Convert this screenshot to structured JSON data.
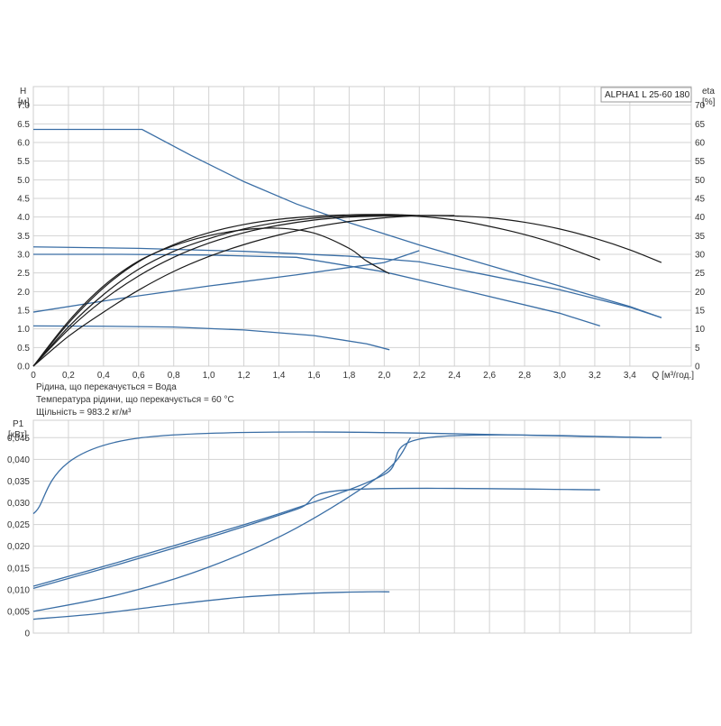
{
  "chart_data": [
    {
      "type": "line",
      "panel": "head-and-efficiency",
      "product_label": "ALPHA1 L 25-60   180",
      "x_axis": {
        "label": "Q [м³/год.]",
        "range": [
          0,
          3.75
        ],
        "ticks": [
          "0",
          "0,2",
          "0,4",
          "0,6",
          "0,8",
          "1,0",
          "1,2",
          "1,4",
          "1,6",
          "1,8",
          "2,0",
          "2,2",
          "2,4",
          "2,6",
          "2,8",
          "3,0",
          "3,2",
          "3,4"
        ]
      },
      "y_axis_left": {
        "label_line1": "H",
        "label_line2": "[м]",
        "range": [
          0,
          7.5
        ],
        "ticks": [
          "0.0",
          "0.5",
          "1.0",
          "1.5",
          "2.0",
          "2.5",
          "3.0",
          "3.5",
          "4.0",
          "4.5",
          "5.0",
          "5.5",
          "6.0",
          "6.5",
          "7.0"
        ]
      },
      "y_axis_right": {
        "label_line1": "eta",
        "label_line2": "[%]",
        "range": [
          0,
          75
        ],
        "ticks": [
          "0",
          "5",
          "10",
          "15",
          "20",
          "25",
          "30",
          "35",
          "40",
          "45",
          "50",
          "55",
          "60",
          "65",
          "70"
        ]
      },
      "grid": true,
      "colors": {
        "head_curves": "#3a6ea5",
        "efficiency_curves": "#1a1a1a",
        "grid": "#d3d3d3"
      },
      "head_series": [
        {
          "x": [
            0,
            0.62,
            0.9,
            1.2,
            1.5,
            1.8,
            2.2,
            2.6,
            3.0,
            3.4,
            3.58
          ],
          "y": [
            6.35,
            6.35,
            5.65,
            4.95,
            4.35,
            3.85,
            3.25,
            2.7,
            2.15,
            1.6,
            1.3
          ]
        },
        {
          "x": [
            0,
            0.6,
            1.2,
            1.8,
            2.2,
            2.6,
            3.0,
            3.4,
            3.58
          ],
          "y": [
            3.2,
            3.16,
            3.08,
            2.95,
            2.8,
            2.43,
            2.05,
            1.58,
            1.3
          ]
        },
        {
          "x": [
            0,
            0.5,
            1.0,
            1.5,
            2.0,
            2.5,
            3.0,
            3.23
          ],
          "y": [
            3.0,
            3.0,
            2.98,
            2.92,
            2.53,
            1.98,
            1.42,
            1.08
          ]
        },
        {
          "x": [
            0,
            0.4,
            0.8,
            1.2,
            1.6,
            1.9,
            2.03
          ],
          "y": [
            1.08,
            1.07,
            1.05,
            0.97,
            0.82,
            0.6,
            0.44
          ]
        },
        {
          "x": [
            0,
            0.5,
            1.0,
            1.5,
            2.0,
            2.2
          ],
          "y": [
            1.45,
            1.82,
            2.15,
            2.45,
            2.78,
            3.1
          ]
        }
      ],
      "efficiency_series": [
        {
          "x": [
            0,
            0.2,
            0.4,
            0.6,
            0.8,
            1.0,
            1.2,
            1.4,
            1.6,
            1.8,
            2.0,
            2.2,
            2.4,
            2.6,
            2.8,
            3.0,
            3.2,
            3.4,
            3.58
          ],
          "y": [
            0,
            9.8,
            17.8,
            24.2,
            29.2,
            33.0,
            35.8,
            37.8,
            39.2,
            40.0,
            40.3,
            40.4,
            40.3,
            39.8,
            38.6,
            36.8,
            34.3,
            31.2,
            27.8
          ]
        },
        {
          "x": [
            0,
            0.2,
            0.4,
            0.6,
            0.8,
            1.0,
            1.2,
            1.4,
            1.6,
            1.8,
            2.0,
            2.2,
            2.4,
            2.6,
            2.8,
            3.0,
            3.23
          ],
          "y": [
            0,
            10.5,
            19.2,
            26.0,
            30.8,
            34.2,
            36.8,
            38.6,
            39.7,
            40.3,
            40.4,
            40.2,
            39.2,
            37.5,
            35.3,
            32.5,
            28.5
          ]
        },
        {
          "x": [
            0,
            0.2,
            0.4,
            0.6,
            0.8,
            1.0,
            1.2,
            1.4,
            1.6,
            1.8,
            2.0,
            2.1,
            2.2
          ],
          "y": [
            0,
            11.5,
            21.0,
            28.0,
            32.6,
            35.8,
            38.0,
            39.4,
            40.2,
            40.6,
            40.7,
            40.6,
            40.4
          ]
        },
        {
          "x": [
            0,
            0.2,
            0.4,
            0.6,
            0.8,
            1.0,
            1.2,
            1.4,
            1.6,
            1.8,
            1.9,
            2.03
          ],
          "y": [
            0,
            12.0,
            21.5,
            28.2,
            32.3,
            35.0,
            36.6,
            37.0,
            35.7,
            31.6,
            28.2,
            24.8
          ]
        },
        {
          "x": [
            0,
            0.2,
            0.4,
            0.6,
            0.8,
            1.0,
            1.2,
            1.4,
            1.6,
            1.8,
            2.0,
            2.2,
            2.4
          ],
          "y": [
            0,
            8.0,
            14.5,
            20.4,
            25.4,
            29.4,
            32.6,
            35.2,
            37.3,
            38.8,
            39.8,
            40.4,
            40.4
          ]
        }
      ]
    },
    {
      "type": "line",
      "panel": "power-input",
      "x_axis": {
        "range": [
          0,
          3.75
        ]
      },
      "y_axis_left": {
        "label_line1": "P1",
        "label_line2": "[кВт]",
        "range": [
          0,
          0.049
        ],
        "ticks": [
          "0",
          "0,005",
          "0,010",
          "0,015",
          "0,020",
          "0,025",
          "0,030",
          "0,035",
          "0,040",
          "0,045"
        ]
      },
      "grid": true,
      "colors": {
        "power_curves": "#3a6ea5"
      },
      "power_series": [
        {
          "x": [
            0,
            0.62,
            3.58
          ],
          "y": [
            0.0275,
            0.045,
            0.045
          ]
        },
        {
          "x": [
            0,
            0.5,
            1.0,
            1.5,
            2.0,
            2.25,
            3.58
          ],
          "y": [
            0.0108,
            0.0165,
            0.0225,
            0.0288,
            0.0365,
            0.045,
            0.045
          ]
        },
        {
          "x": [
            0,
            0.5,
            1.0,
            1.5,
            1.8,
            3.23
          ],
          "y": [
            0.0103,
            0.016,
            0.022,
            0.0285,
            0.033,
            0.033
          ]
        },
        {
          "x": [
            0,
            0.4,
            0.8,
            1.2,
            1.6,
            1.9,
            2.03
          ],
          "y": [
            0.0032,
            0.0046,
            0.0066,
            0.0083,
            0.0092,
            0.0095,
            0.0095
          ]
        },
        {
          "x": [
            0,
            0.5,
            1.0,
            1.5,
            2.0,
            2.15
          ],
          "y": [
            0.005,
            0.009,
            0.0152,
            0.0242,
            0.037,
            0.045
          ]
        }
      ]
    }
  ],
  "conditions": {
    "line1": "Рідина, що перекачується = Вода",
    "line2": "Температура рідини, що перекачується = 60 °C",
    "line3": "Щільність = 983.2 кг/м³"
  }
}
